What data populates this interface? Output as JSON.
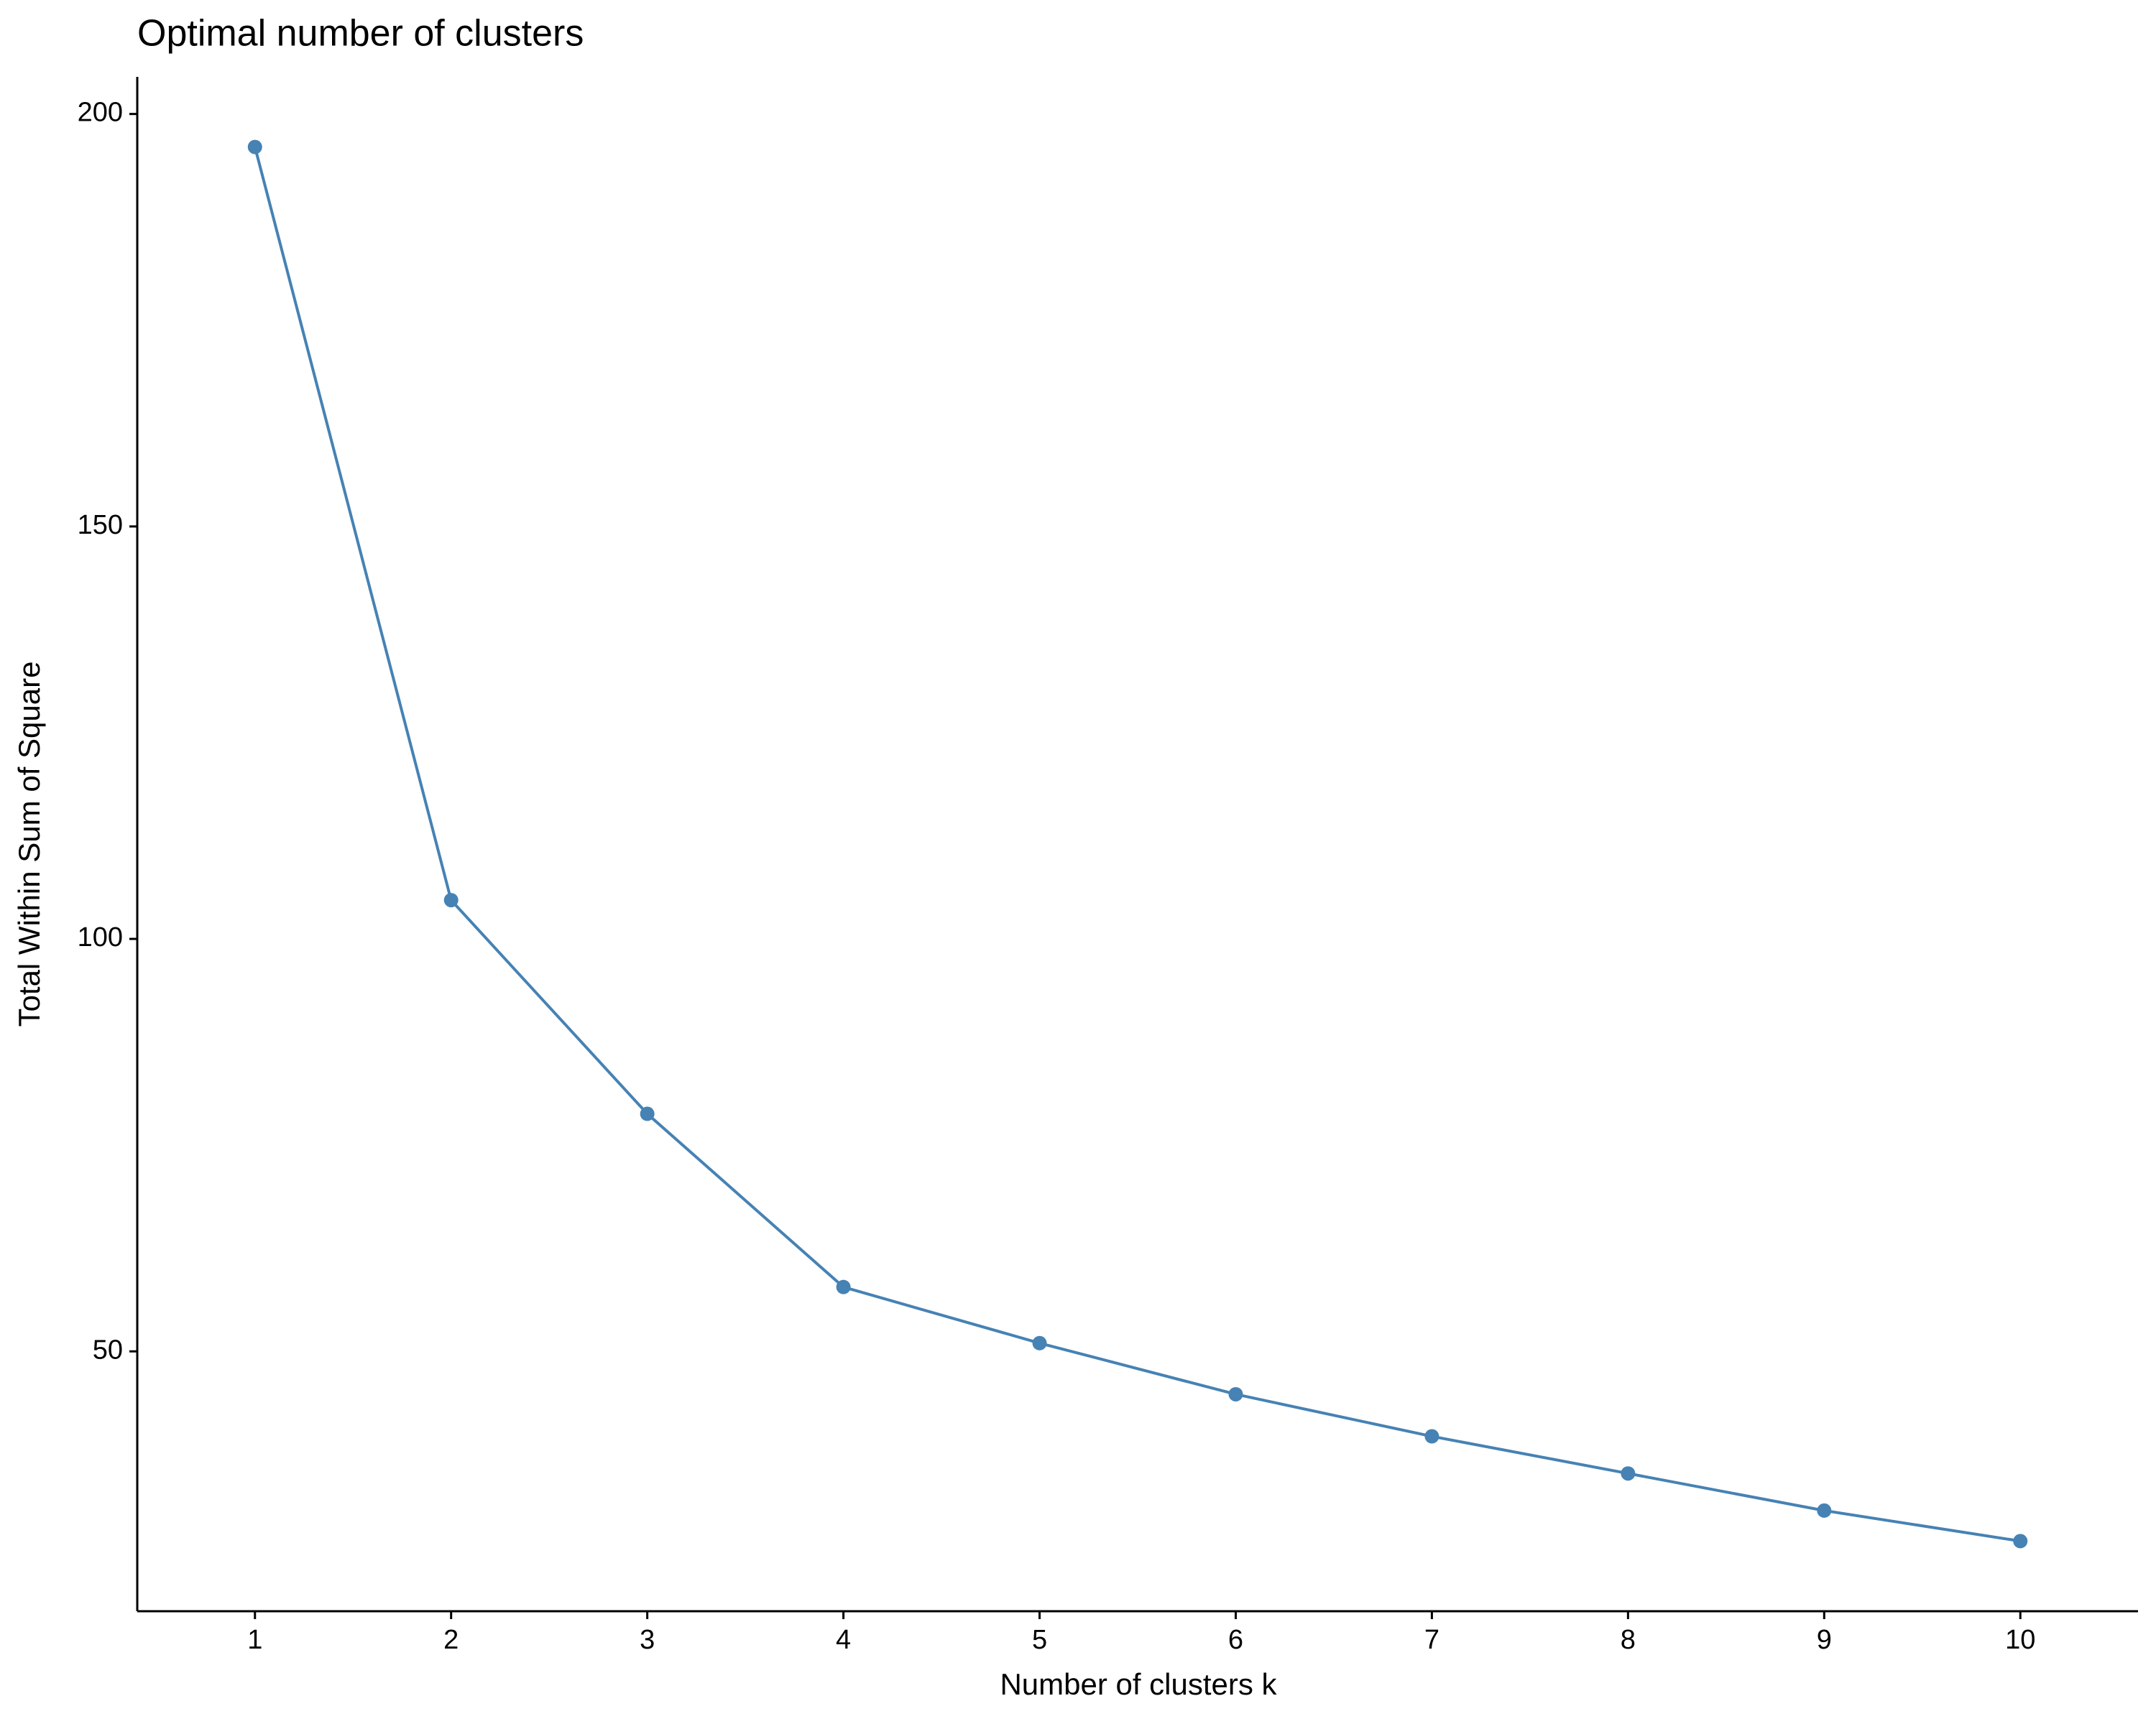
{
  "chart_data": {
    "type": "line",
    "title": "Optimal number of clusters",
    "x_label": "Number of clusters k",
    "y_label": "Total Within Sum of Square",
    "x": [
      1,
      2,
      3,
      4,
      5,
      6,
      7,
      8,
      9,
      10
    ],
    "series": [
      {
        "color": "#4682b4",
        "values": [
          196,
          104.7,
          78.8,
          57.8,
          51,
          44.8,
          39.7,
          35.2,
          30.7,
          27
        ]
      }
    ],
    "xlim": [
      0.4,
      10.6
    ],
    "xticks": [
      1,
      2,
      3,
      4,
      5,
      6,
      7,
      8,
      9,
      10
    ],
    "ylim": [
      18.5,
      204.5
    ],
    "yticks": [
      50,
      100,
      150,
      200
    ],
    "grid": false
  }
}
